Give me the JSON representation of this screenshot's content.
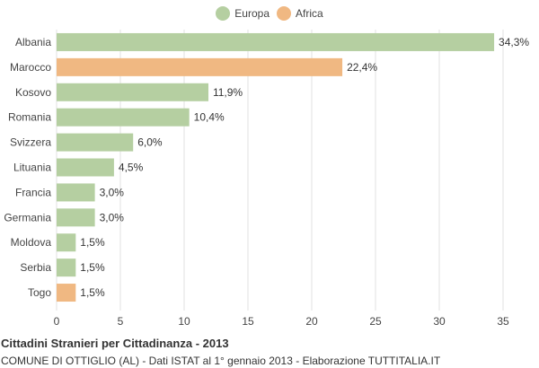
{
  "legend": {
    "items": [
      {
        "label": "Europa",
        "color": "#b5cfa1"
      },
      {
        "label": "Africa",
        "color": "#f0b882"
      }
    ]
  },
  "footer": {
    "title": "Cittadini Stranieri per Cittadinanza - 2013",
    "subtitle": "COMUNE DI OTTIGLIO (AL) - Dati ISTAT al 1° gennaio 2013 - Elaborazione TUTTITALIA.IT"
  },
  "chart_data": {
    "type": "bar",
    "orientation": "horizontal",
    "categories": [
      "Albania",
      "Marocco",
      "Kosovo",
      "Romania",
      "Svizzera",
      "Lituania",
      "Francia",
      "Germania",
      "Moldova",
      "Serbia",
      "Togo"
    ],
    "values": [
      34.3,
      22.4,
      11.9,
      10.4,
      6.0,
      4.5,
      3.0,
      3.0,
      1.5,
      1.5,
      1.5
    ],
    "value_labels": [
      "34,3%",
      "22,4%",
      "11,9%",
      "10,4%",
      "6,0%",
      "4,5%",
      "3,0%",
      "3,0%",
      "1,5%",
      "1,5%",
      "1,5%"
    ],
    "groups": [
      "Europa",
      "Africa",
      "Europa",
      "Europa",
      "Europa",
      "Europa",
      "Europa",
      "Europa",
      "Europa",
      "Europa",
      "Africa"
    ],
    "xlim": [
      0,
      35
    ],
    "xticks": [
      0,
      5,
      10,
      15,
      20,
      25,
      30,
      35
    ],
    "grid": true,
    "legend_position": "top-center",
    "title": "Cittadini Stranieri per Cittadinanza - 2013",
    "xlabel": "",
    "ylabel": ""
  }
}
